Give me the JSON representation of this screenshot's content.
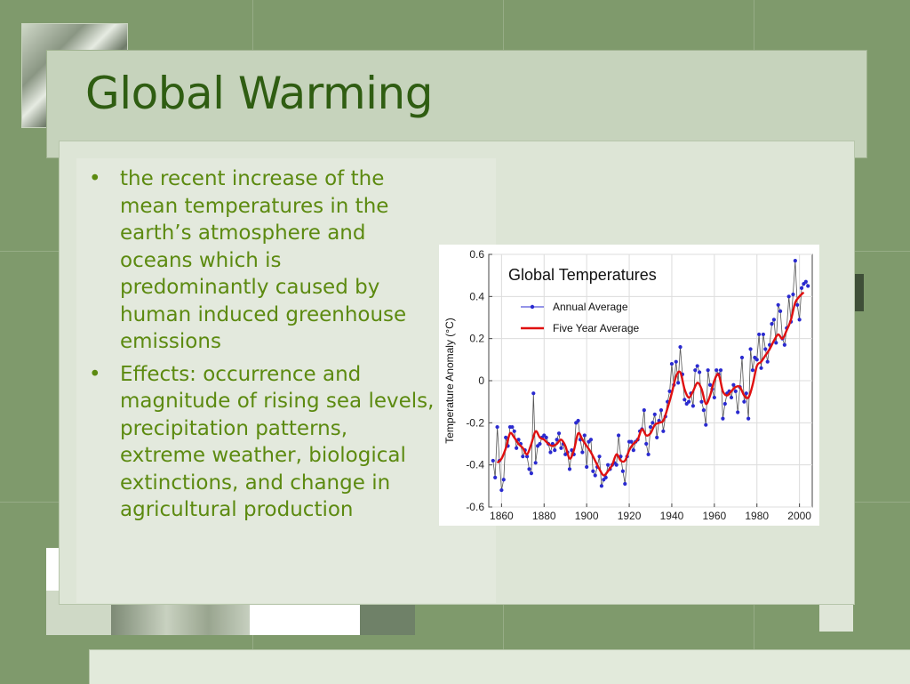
{
  "slide": {
    "title": "Global Warming",
    "bullets": [
      "the recent increase of the mean temperatures in the earth’s atmosphere and oceans which is predominantly caused by human induced greenhouse emissions",
      "Effects: occurrence and magnitude of rising sea levels, precipitation patterns, extreme weather, biological extinctions, and change in agricultural production"
    ],
    "bullet_glyph": "•"
  },
  "colors": {
    "background": "#7f9a6c",
    "title": "#2f5d12",
    "bullet_text": "#5c8a10",
    "annual_series": "#2a2ad0",
    "five_year_series": "#e01010"
  },
  "chart_data": {
    "type": "line",
    "title": "Global Temperatures",
    "xlabel": "",
    "ylabel": "Temperature Anomaly (°C)",
    "xlim": [
      1854,
      2006
    ],
    "ylim": [
      -0.6,
      0.6
    ],
    "x_ticks": [
      1860,
      1880,
      1900,
      1920,
      1940,
      1960,
      1980,
      2000
    ],
    "y_ticks": [
      -0.6,
      -0.4,
      -0.2,
      0,
      0.2,
      0.4,
      0.6
    ],
    "y_tick_labels": [
      "-0.6",
      "-0.4",
      "-0.2",
      "0",
      "0.2",
      "0.4",
      "0.6"
    ],
    "legend_position": "top-left",
    "series": [
      {
        "name": "Annual Average",
        "style": "line-with-dots",
        "x": [
          1856,
          1857,
          1858,
          1859,
          1860,
          1861,
          1862,
          1863,
          1864,
          1865,
          1866,
          1867,
          1868,
          1869,
          1870,
          1871,
          1872,
          1873,
          1874,
          1875,
          1876,
          1877,
          1878,
          1879,
          1880,
          1881,
          1882,
          1883,
          1884,
          1885,
          1886,
          1887,
          1888,
          1889,
          1890,
          1891,
          1892,
          1893,
          1894,
          1895,
          1896,
          1897,
          1898,
          1899,
          1900,
          1901,
          1902,
          1903,
          1904,
          1905,
          1906,
          1907,
          1908,
          1909,
          1910,
          1911,
          1912,
          1913,
          1914,
          1915,
          1916,
          1917,
          1918,
          1919,
          1920,
          1921,
          1922,
          1923,
          1924,
          1925,
          1926,
          1927,
          1928,
          1929,
          1930,
          1931,
          1932,
          1933,
          1934,
          1935,
          1936,
          1937,
          1938,
          1939,
          1940,
          1941,
          1942,
          1943,
          1944,
          1945,
          1946,
          1947,
          1948,
          1949,
          1950,
          1951,
          1952,
          1953,
          1954,
          1955,
          1956,
          1957,
          1958,
          1959,
          1960,
          1961,
          1962,
          1963,
          1964,
          1965,
          1966,
          1967,
          1968,
          1969,
          1970,
          1971,
          1972,
          1973,
          1974,
          1975,
          1976,
          1977,
          1978,
          1979,
          1980,
          1981,
          1982,
          1983,
          1984,
          1985,
          1986,
          1987,
          1988,
          1989,
          1990,
          1991,
          1992,
          1993,
          1994,
          1995,
          1996,
          1997,
          1998,
          1999,
          2000,
          2001,
          2002,
          2003,
          2004
        ],
        "y": [
          -0.38,
          -0.46,
          -0.22,
          -0.38,
          -0.52,
          -0.47,
          -0.27,
          -0.31,
          -0.22,
          -0.22,
          -0.24,
          -0.32,
          -0.28,
          -0.3,
          -0.36,
          -0.33,
          -0.36,
          -0.42,
          -0.44,
          -0.06,
          -0.39,
          -0.31,
          -0.3,
          -0.27,
          -0.26,
          -0.27,
          -0.3,
          -0.34,
          -0.3,
          -0.33,
          -0.28,
          -0.25,
          -0.32,
          -0.3,
          -0.35,
          -0.34,
          -0.42,
          -0.33,
          -0.35,
          -0.2,
          -0.19,
          -0.28,
          -0.34,
          -0.26,
          -0.41,
          -0.29,
          -0.28,
          -0.43,
          -0.45,
          -0.41,
          -0.36,
          -0.5,
          -0.47,
          -0.46,
          -0.4,
          -0.42,
          -0.4,
          -0.39,
          -0.4,
          -0.26,
          -0.36,
          -0.43,
          -0.49,
          -0.36,
          -0.29,
          -0.29,
          -0.33,
          -0.29,
          -0.28,
          -0.24,
          -0.23,
          -0.14,
          -0.3,
          -0.35,
          -0.22,
          -0.2,
          -0.16,
          -0.27,
          -0.19,
          -0.14,
          -0.24,
          -0.17,
          -0.1,
          -0.05,
          0.08,
          -0.02,
          0.09,
          -0.01,
          0.16,
          0.03,
          -0.09,
          -0.11,
          -0.1,
          -0.06,
          -0.12,
          0.05,
          0.07,
          0.04,
          -0.1,
          -0.14,
          -0.21,
          0.05,
          -0.02,
          -0.04,
          -0.08,
          0.05,
          0.03,
          0.05,
          -0.18,
          -0.11,
          -0.06,
          -0.05,
          -0.08,
          -0.02,
          -0.05,
          -0.15,
          -0.03,
          0.11,
          -0.1,
          -0.06,
          -0.18,
          0.15,
          0.05,
          0.11,
          0.1,
          0.22,
          0.06,
          0.22,
          0.15,
          0.09,
          0.17,
          0.27,
          0.29,
          0.18,
          0.36,
          0.33,
          0.2,
          0.17,
          0.25,
          0.4,
          0.28,
          0.41,
          0.57,
          0.36,
          0.29,
          0.44,
          0.46,
          0.47,
          0.45
        ]
      },
      {
        "name": "Five Year Average",
        "style": "smooth-line",
        "x": [
          1858,
          1860,
          1862,
          1864,
          1866,
          1868,
          1870,
          1872,
          1874,
          1876,
          1878,
          1880,
          1882,
          1884,
          1886,
          1888,
          1890,
          1892,
          1894,
          1896,
          1898,
          1900,
          1902,
          1904,
          1906,
          1908,
          1910,
          1912,
          1914,
          1916,
          1918,
          1920,
          1922,
          1924,
          1926,
          1928,
          1930,
          1932,
          1934,
          1936,
          1938,
          1940,
          1942,
          1944,
          1946,
          1948,
          1950,
          1952,
          1954,
          1956,
          1958,
          1960,
          1962,
          1964,
          1966,
          1968,
          1970,
          1972,
          1974,
          1976,
          1978,
          1980,
          1982,
          1984,
          1986,
          1988,
          1990,
          1992,
          1994,
          1996,
          1998,
          2000,
          2002
        ],
        "y": [
          -0.39,
          -0.37,
          -0.32,
          -0.25,
          -0.27,
          -0.3,
          -0.32,
          -0.35,
          -0.3,
          -0.24,
          -0.27,
          -0.28,
          -0.3,
          -0.31,
          -0.3,
          -0.28,
          -0.31,
          -0.37,
          -0.33,
          -0.25,
          -0.28,
          -0.31,
          -0.34,
          -0.38,
          -0.42,
          -0.45,
          -0.43,
          -0.4,
          -0.35,
          -0.38,
          -0.38,
          -0.33,
          -0.3,
          -0.28,
          -0.23,
          -0.26,
          -0.25,
          -0.21,
          -0.2,
          -0.19,
          -0.13,
          -0.06,
          0.02,
          0.04,
          -0.04,
          -0.08,
          -0.05,
          -0.01,
          -0.04,
          -0.11,
          -0.07,
          0.0,
          0.03,
          -0.05,
          -0.07,
          -0.05,
          -0.03,
          -0.03,
          -0.07,
          -0.08,
          -0.02,
          0.07,
          0.09,
          0.12,
          0.15,
          0.19,
          0.22,
          0.2,
          0.24,
          0.29,
          0.37,
          0.4,
          0.42
        ]
      }
    ]
  }
}
